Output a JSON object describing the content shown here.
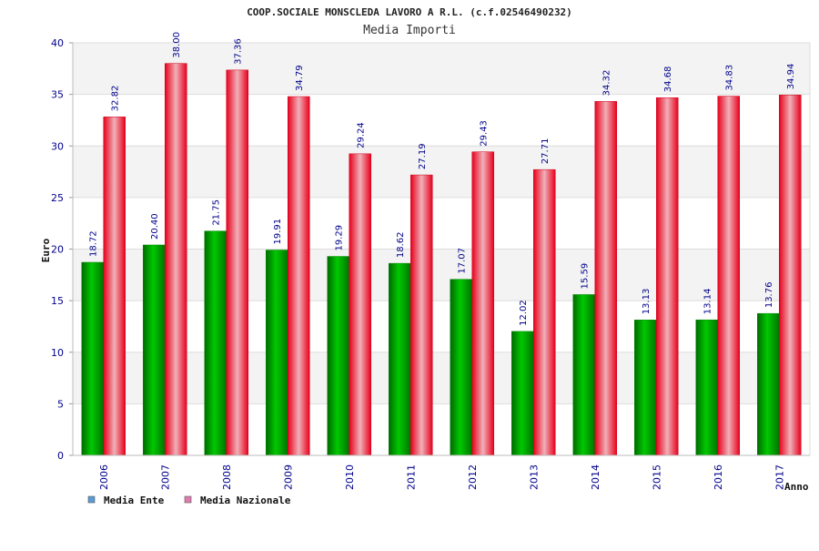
{
  "chart_data": {
    "type": "bar",
    "title": "COOP.SOCIALE MONSCLEDA LAVORO A R.L. (c.f.02546490232)",
    "subtitle": "Media Importi",
    "ylabel": "Euro",
    "xlabel": "Anno",
    "ylim": [
      0,
      40
    ],
    "yticks": [
      0,
      5,
      10,
      15,
      20,
      25,
      30,
      35,
      40
    ],
    "categories": [
      "2006",
      "2007",
      "2008",
      "2009",
      "2010",
      "2011",
      "2012",
      "2013",
      "2014",
      "2015",
      "2016",
      "2017"
    ],
    "series": [
      {
        "name": "Media Ente",
        "color": "#00b000",
        "legend_color": "#5b9bd5",
        "values": [
          18.72,
          20.4,
          21.75,
          19.91,
          19.29,
          18.62,
          17.07,
          12.02,
          15.59,
          13.13,
          13.14,
          13.76
        ],
        "labels": [
          "18.72",
          "20.40",
          "21.75",
          "19.91",
          "19.29",
          "18.62",
          "17.07",
          "12.02",
          "15.59",
          "13.13",
          "13.14",
          "13.76"
        ]
      },
      {
        "name": "Media Nazionale",
        "color": "#e8001c",
        "legend_color": "#e07bb0",
        "values": [
          32.82,
          38.0,
          37.36,
          34.79,
          29.24,
          27.19,
          29.43,
          27.71,
          34.32,
          34.68,
          34.83,
          34.94
        ],
        "labels": [
          "32.82",
          "38.00",
          "37.36",
          "34.79",
          "29.24",
          "27.19",
          "29.43",
          "27.71",
          "34.32",
          "34.68",
          "34.83",
          "34.94"
        ]
      }
    ],
    "grid": true,
    "legend_position": "bottom-left"
  }
}
